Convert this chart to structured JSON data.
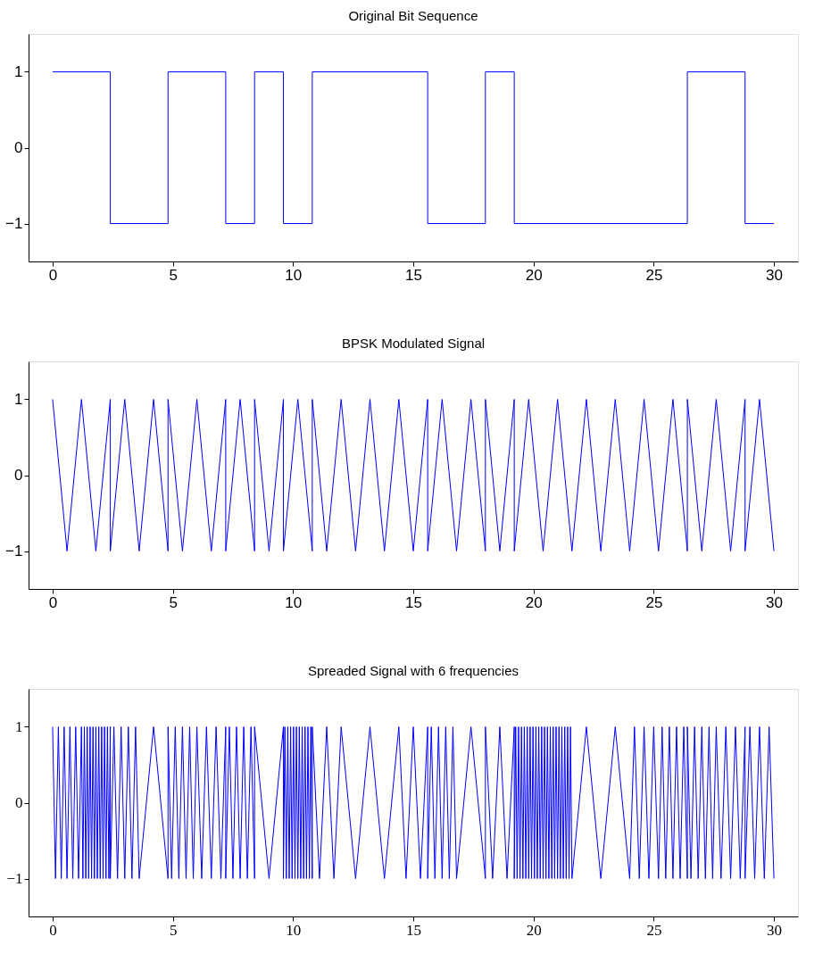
{
  "chart_data": [
    {
      "type": "line",
      "title": "Original Bit Sequence",
      "xlim": [
        -1,
        31
      ],
      "ylim": [
        -1.5,
        1.5
      ],
      "xticks": [
        0,
        5,
        10,
        15,
        20,
        25,
        30
      ],
      "yticks": [
        -1,
        0,
        1
      ],
      "grid": false,
      "legend": false,
      "marker": "none",
      "line_style": "solid",
      "series": [
        {
          "color": "#0000ff",
          "x": [
            0,
            2.4,
            2.4,
            4.8,
            4.8,
            7.2,
            7.2,
            8.4,
            8.4,
            9.6,
            9.6,
            10.8,
            10.8,
            15.6,
            15.6,
            18,
            18,
            19.2,
            19.2,
            26.4,
            26.4,
            28.8,
            28.8,
            30
          ],
          "values": [
            1,
            1,
            -1,
            -1,
            1,
            1,
            -1,
            -1,
            1,
            1,
            -1,
            -1,
            1,
            1,
            -1,
            -1,
            1,
            1,
            -1,
            -1,
            1,
            1,
            -1,
            -1
          ]
        }
      ]
    },
    {
      "type": "line",
      "title": "BPSK Modulated Signal",
      "xlim": [
        -1,
        31
      ],
      "ylim": [
        -1.5,
        1.5
      ],
      "xticks": [
        0,
        5,
        10,
        15,
        20,
        25,
        30
      ],
      "yticks": [
        -1,
        0,
        1
      ],
      "grid": false,
      "legend": false,
      "marker": "none",
      "line_style": "solid",
      "series": [
        {
          "color": "#0000ff",
          "x": [
            0,
            0.6,
            1.2,
            1.8,
            2.4,
            2.4,
            3.0,
            3.6,
            4.2,
            4.8,
            4.8,
            5.4,
            6.0,
            6.6,
            7.2,
            7.2,
            7.8,
            8.4,
            8.4,
            9.0,
            9.6,
            9.6,
            10.2,
            10.8,
            10.8,
            11.4,
            12.0,
            12.6,
            13.2,
            13.8,
            14.4,
            15.0,
            15.6,
            15.6,
            16.2,
            16.8,
            17.4,
            18.0,
            18.0,
            18.6,
            19.2,
            19.2,
            19.8,
            20.4,
            21.0,
            21.6,
            22.2,
            22.8,
            23.4,
            24.0,
            24.6,
            25.2,
            25.8,
            26.4,
            26.4,
            27.0,
            27.6,
            28.2,
            28.8,
            28.8,
            29.4,
            30.0
          ],
          "values": [
            1,
            -1,
            1,
            -1,
            1,
            -1,
            1,
            -1,
            1,
            -1,
            1,
            -1,
            1,
            -1,
            1,
            -1,
            1,
            -1,
            1,
            -1,
            1,
            -1,
            1,
            -1,
            1,
            -1,
            1,
            -1,
            1,
            -1,
            1,
            -1,
            1,
            -1,
            1,
            -1,
            1,
            -1,
            1,
            -1,
            1,
            -1,
            1,
            -1,
            1,
            -1,
            1,
            -1,
            1,
            -1,
            1,
            -1,
            1,
            -1,
            1,
            -1,
            1,
            -1,
            1,
            -1,
            1,
            -1
          ]
        }
      ]
    },
    {
      "type": "line",
      "title": "Spreaded Signal with 6 frequencies",
      "xlim": [
        -1,
        31
      ],
      "ylim": [
        -1.5,
        1.5
      ],
      "xticks": [
        0,
        5,
        10,
        15,
        20,
        25,
        30
      ],
      "yticks": [
        -1,
        0,
        1
      ],
      "grid": false,
      "legend": false,
      "marker": "none",
      "line_style": "solid",
      "series": [
        {
          "color": "#0000ff",
          "x": [
            0,
            0.12,
            0.24,
            0.36,
            0.48,
            0.6,
            0.72,
            0.84,
            0.96,
            1.08,
            1.2,
            1.26,
            1.32,
            1.38,
            1.44,
            1.5,
            1.56,
            1.62,
            1.68,
            1.74,
            1.8,
            1.86,
            1.92,
            1.98,
            2.04,
            2.1,
            2.16,
            2.22,
            2.28,
            2.34,
            2.4,
            2.4,
            2.55,
            2.7,
            2.85,
            3.0,
            3.15,
            3.3,
            3.45,
            3.6,
            4.2,
            4.8,
            4.8,
            4.95,
            5.1,
            5.25,
            5.4,
            5.55,
            5.7,
            5.85,
            6.0,
            6.2,
            6.4,
            6.6,
            6.8,
            7.0,
            7.2,
            7.2,
            7.35,
            7.5,
            7.65,
            7.8,
            7.95,
            8.1,
            8.25,
            8.4,
            8.4,
            9.0,
            9.6,
            9.6,
            9.66,
            9.72,
            9.78,
            9.84,
            9.9,
            9.96,
            10.02,
            10.08,
            10.14,
            10.2,
            10.26,
            10.32,
            10.38,
            10.44,
            10.5,
            10.56,
            10.62,
            10.68,
            10.74,
            10.8,
            10.8,
            11.1,
            11.4,
            11.7,
            12.0,
            12.6,
            13.2,
            13.8,
            14.4,
            14.7,
            15.0,
            15.3,
            15.6,
            15.6,
            15.75,
            15.9,
            16.05,
            16.2,
            16.35,
            16.5,
            16.65,
            16.8,
            17.4,
            18.0,
            18.0,
            18.3,
            18.6,
            18.9,
            19.2,
            19.2,
            19.26,
            19.32,
            19.38,
            19.44,
            19.5,
            19.56,
            19.62,
            19.68,
            19.74,
            19.8,
            19.86,
            19.92,
            19.98,
            20.04,
            20.1,
            20.16,
            20.22,
            20.28,
            20.34,
            20.4,
            20.46,
            20.52,
            20.58,
            20.64,
            20.7,
            20.76,
            20.82,
            20.88,
            20.94,
            21.0,
            21.06,
            21.12,
            21.18,
            21.24,
            21.3,
            21.36,
            21.42,
            21.48,
            21.54,
            21.6,
            22.2,
            22.8,
            23.4,
            24.0,
            24.2,
            24.4,
            24.6,
            24.8,
            25.0,
            25.2,
            25.35,
            25.5,
            25.65,
            25.8,
            25.95,
            26.1,
            26.25,
            26.4,
            26.4,
            26.55,
            26.7,
            26.85,
            27.0,
            27.15,
            27.3,
            27.45,
            27.6,
            27.8,
            28.0,
            28.2,
            28.4,
            28.6,
            28.8,
            28.8,
            29.0,
            29.2,
            29.4,
            29.6,
            29.8,
            30.0
          ],
          "values": [
            1,
            -1,
            1,
            -1,
            1,
            -1,
            1,
            -1,
            1,
            -1,
            1,
            -1,
            1,
            -1,
            1,
            -1,
            1,
            -1,
            1,
            -1,
            1,
            -1,
            1,
            -1,
            1,
            -1,
            1,
            -1,
            1,
            -1,
            1,
            -1,
            1,
            -1,
            1,
            -1,
            1,
            -1,
            1,
            -1,
            1,
            -1,
            1,
            -1,
            1,
            -1,
            1,
            -1,
            1,
            -1,
            1,
            -1,
            1,
            -1,
            1,
            -1,
            1,
            -1,
            1,
            -1,
            1,
            -1,
            1,
            -1,
            1,
            -1,
            1,
            -1,
            1,
            -1,
            1,
            -1,
            1,
            -1,
            1,
            -1,
            1,
            -1,
            1,
            -1,
            1,
            -1,
            1,
            -1,
            1,
            -1,
            1,
            -1,
            1,
            -1,
            1,
            -1,
            1,
            -1,
            1,
            -1,
            1,
            -1,
            1,
            -1,
            1,
            -1,
            1,
            -1,
            1,
            -1,
            1,
            -1,
            1,
            -1,
            1,
            -1,
            1,
            -1,
            1,
            -1,
            1,
            -1,
            1,
            -1,
            1,
            -1,
            1,
            -1,
            1,
            -1,
            1,
            -1,
            1,
            -1,
            1,
            -1,
            1,
            -1,
            1,
            -1,
            1,
            -1,
            1,
            -1,
            1,
            -1,
            1,
            -1,
            1,
            -1,
            1,
            -1,
            1,
            -1,
            1,
            -1,
            1,
            -1,
            1,
            -1,
            1,
            -1,
            1,
            -1,
            1,
            -1,
            1,
            -1,
            1,
            -1,
            1,
            -1,
            1,
            -1,
            1,
            -1,
            1,
            -1,
            1,
            -1,
            1,
            -1,
            1,
            -1,
            1,
            -1,
            1,
            -1,
            1,
            -1,
            1,
            -1,
            1,
            -1,
            1,
            -1,
            1,
            -1,
            1,
            -1,
            1,
            -1,
            1,
            -1
          ]
        }
      ]
    }
  ]
}
